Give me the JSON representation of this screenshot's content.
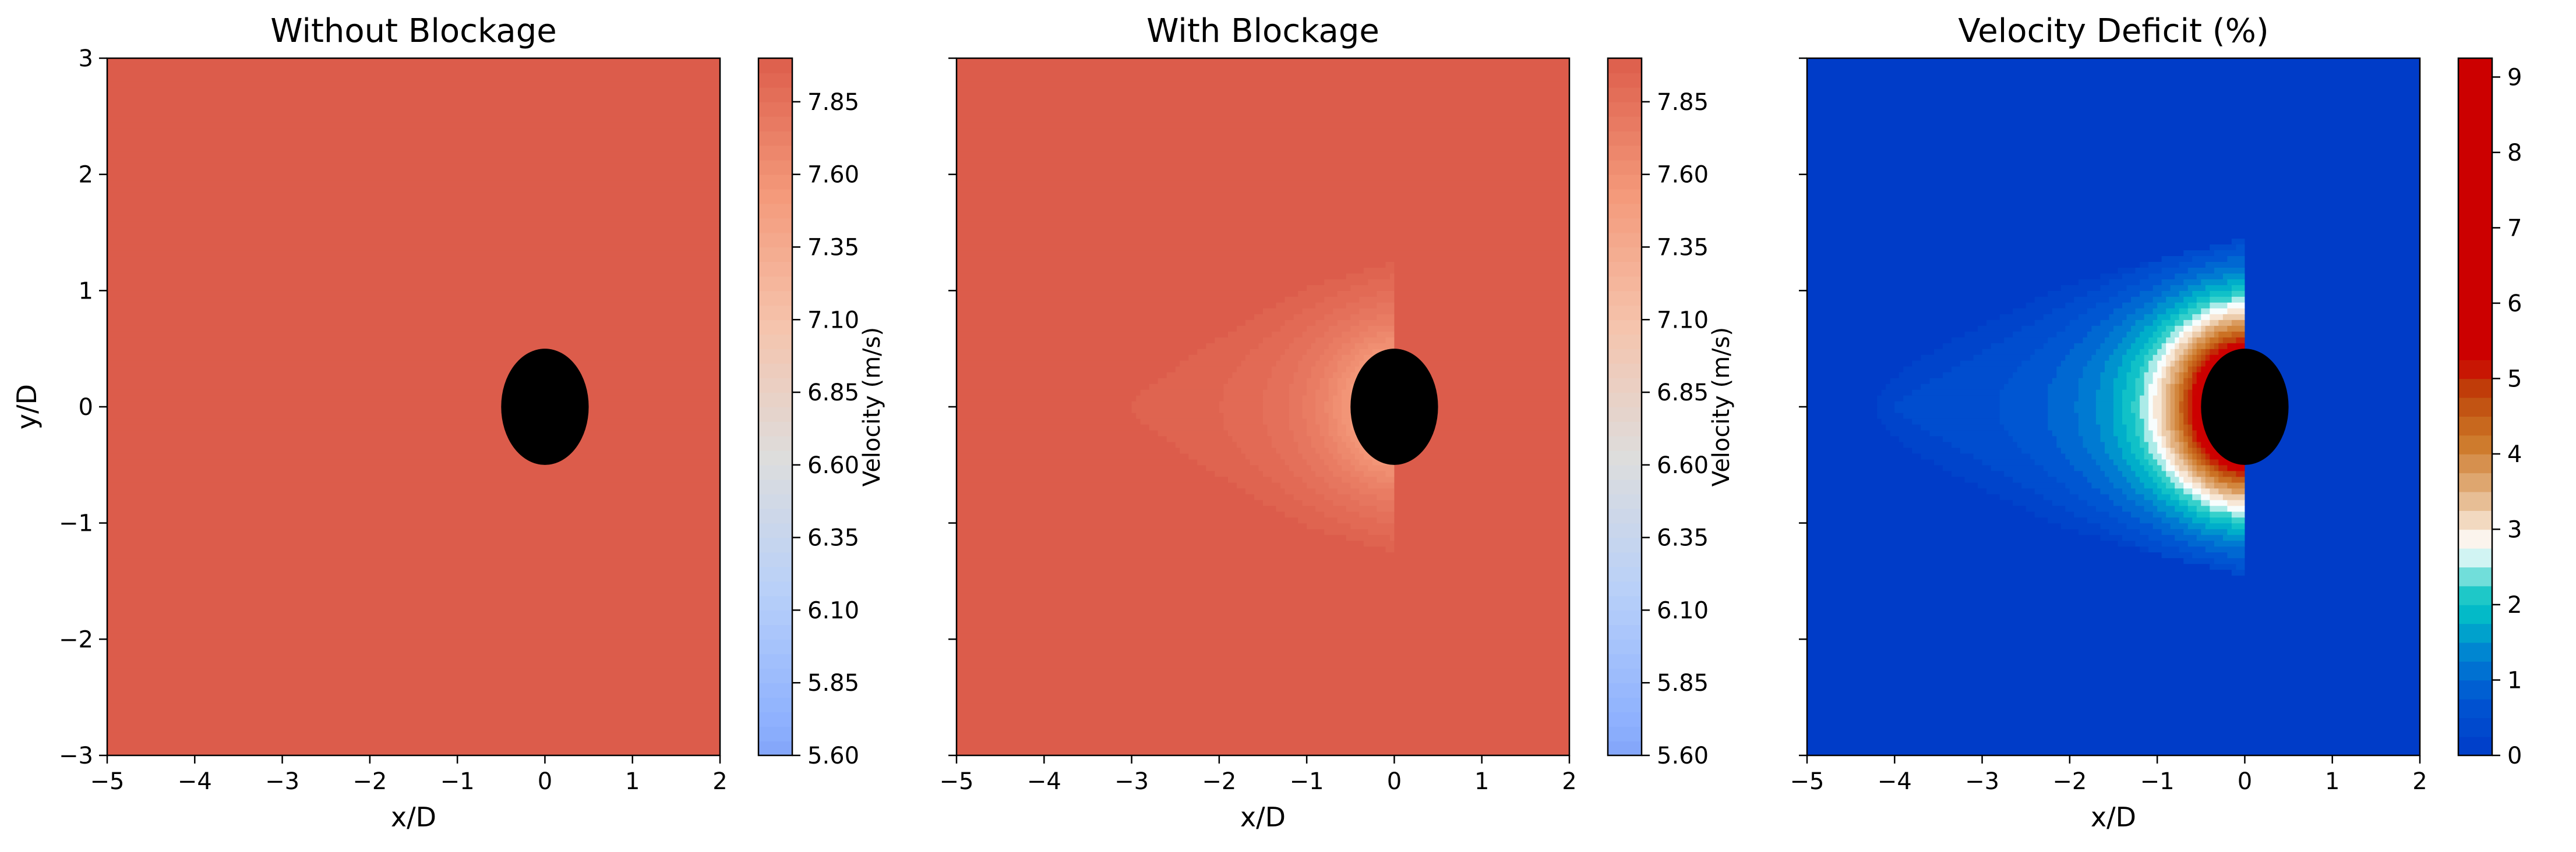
{
  "figure": {
    "background": "#ffffff"
  },
  "chart_data": [
    {
      "type": "heatmap",
      "title": "Without Blockage",
      "xlabel": "x/D",
      "ylabel": "y/D",
      "xlim": [
        -5,
        2
      ],
      "ylim": [
        -3,
        3
      ],
      "xticks": [
        -5,
        -4,
        -3,
        -2,
        -1,
        0,
        1,
        2
      ],
      "yticks": [
        -3,
        -2,
        -1,
        0,
        1,
        2,
        3
      ],
      "xtick_labels": [
        "−5",
        "−4",
        "−3",
        "−2",
        "−1",
        "0",
        "1",
        "2"
      ],
      "ytick_labels": [
        "−3",
        "−2",
        "−1",
        "0",
        "1",
        "2",
        "3"
      ],
      "field": "uniform",
      "free_stream_velocity": 8.0,
      "rotor_center": [
        0,
        0
      ],
      "rotor_radius": 0.5,
      "rotor_color": "#000000",
      "colorbar": {
        "label": "Velocity (m/s)",
        "colormap": "coolwarm",
        "range": [
          5.6,
          8.0
        ],
        "ticks": [
          5.6,
          5.85,
          6.1,
          6.35,
          6.6,
          6.85,
          7.1,
          7.35,
          7.6,
          7.85
        ],
        "tick_labels": [
          "5.60",
          "5.85",
          "6.10",
          "6.35",
          "6.60",
          "6.85",
          "7.10",
          "7.35",
          "7.60",
          "7.85"
        ]
      }
    },
    {
      "type": "heatmap",
      "title": "With Blockage",
      "xlabel": "x/D",
      "ylabel": "",
      "xlim": [
        -5,
        2
      ],
      "ylim": [
        -3,
        3
      ],
      "xticks": [
        -5,
        -4,
        -3,
        -2,
        -1,
        0,
        1,
        2
      ],
      "yticks": [
        -3,
        -2,
        -1,
        0,
        1,
        2,
        3
      ],
      "xtick_labels": [
        "−5",
        "−4",
        "−3",
        "−2",
        "−1",
        "0",
        "1",
        "2"
      ],
      "ytick_labels": [],
      "field": "velocity_with_blockage",
      "free_stream_velocity": 8.0,
      "max_deficit_percent": 9.25,
      "deficit_extent_upstream": 3.0,
      "deficit_half_width": 1.25,
      "rotor_center": [
        0,
        0
      ],
      "rotor_radius": 0.5,
      "rotor_color": "#000000",
      "colorbar": {
        "label": "Velocity (m/s)",
        "colormap": "coolwarm",
        "range": [
          5.6,
          8.0
        ],
        "ticks": [
          5.6,
          5.85,
          6.1,
          6.35,
          6.6,
          6.85,
          7.1,
          7.35,
          7.6,
          7.85
        ],
        "tick_labels": [
          "5.60",
          "5.85",
          "6.10",
          "6.35",
          "6.60",
          "6.85",
          "7.10",
          "7.35",
          "7.60",
          "7.85"
        ]
      }
    },
    {
      "type": "heatmap",
      "title": "Velocity Deficit (%)",
      "xlabel": "x/D",
      "ylabel": "",
      "xlim": [
        -5,
        2
      ],
      "ylim": [
        -3,
        3
      ],
      "xticks": [
        -5,
        -4,
        -3,
        -2,
        -1,
        0,
        1,
        2
      ],
      "yticks": [
        -3,
        -2,
        -1,
        0,
        1,
        2,
        3
      ],
      "xtick_labels": [
        "−5",
        "−4",
        "−3",
        "−2",
        "−1",
        "0",
        "1",
        "2"
      ],
      "ytick_labels": [],
      "field": "deficit_percent",
      "max_deficit_percent": 9.25,
      "deficit_extent_upstream": 4.2,
      "deficit_half_width": 1.45,
      "rotor_center": [
        0,
        0
      ],
      "rotor_radius": 0.5,
      "rotor_color": "#000000",
      "colorbar": {
        "label": "Velocity Deficit (%)",
        "colormap": "diverging blue-cyan-white-orange-red",
        "range": [
          0,
          9.25
        ],
        "ticks": [
          0,
          1,
          2,
          3,
          4,
          5,
          6,
          7,
          8,
          9
        ],
        "tick_labels": [
          "0",
          "1",
          "2",
          "3",
          "4",
          "5",
          "6",
          "7",
          "8",
          "9"
        ]
      }
    }
  ]
}
